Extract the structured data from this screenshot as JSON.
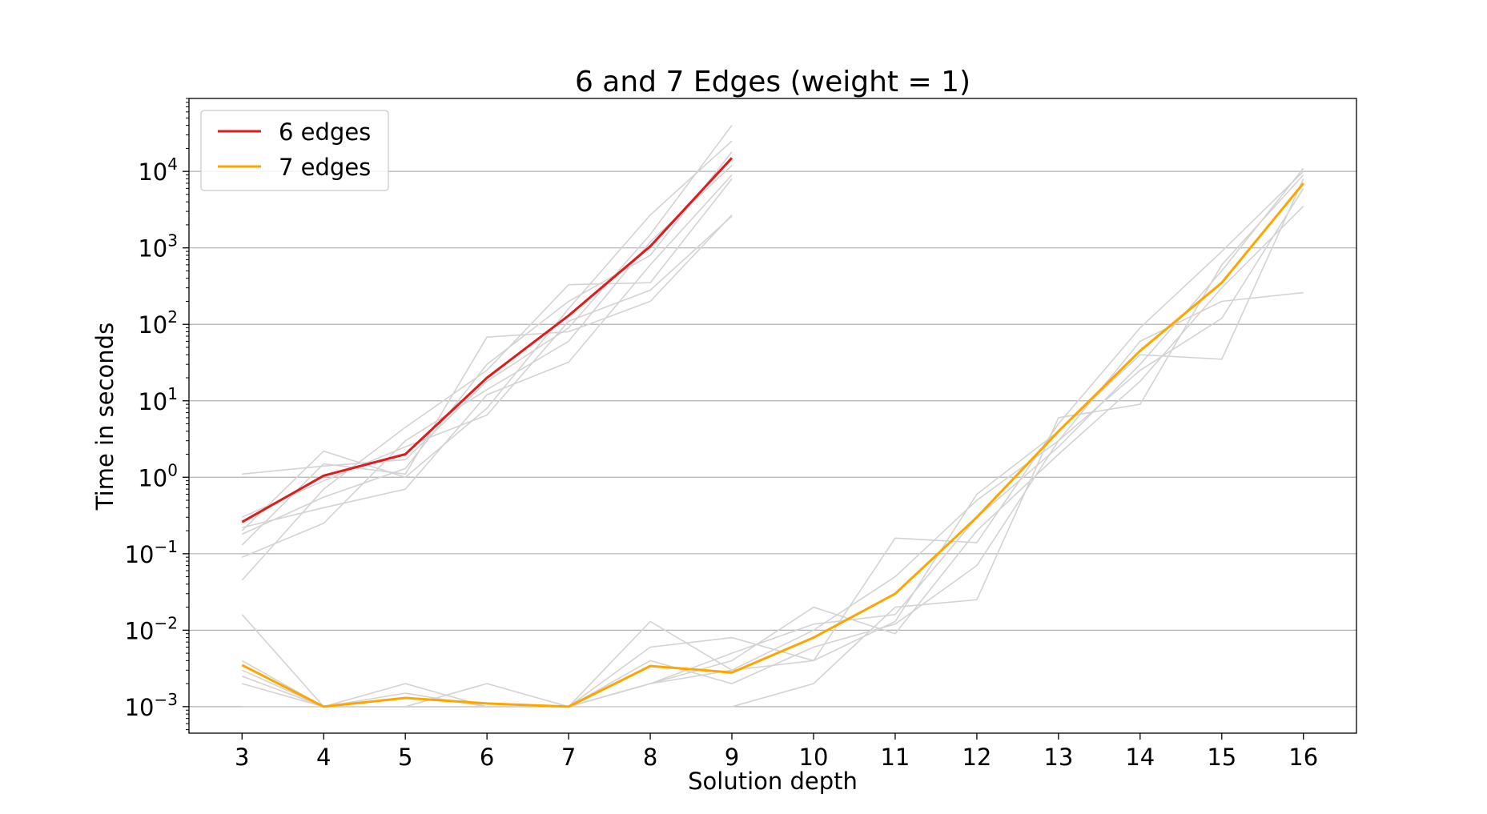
{
  "chart_data": {
    "type": "line",
    "title": "6 and 7 Edges (weight = 1)",
    "xlabel": "Solution depth",
    "ylabel": "Time in seconds",
    "x_ticks": [
      3,
      4,
      5,
      6,
      7,
      8,
      9,
      10,
      11,
      12,
      13,
      14,
      15,
      16
    ],
    "xlim": [
      2.35,
      16.65
    ],
    "yscale": "log",
    "ylim": [
      0.00045,
      90000
    ],
    "y_ticks": [
      {
        "value": 0.001,
        "base": "10",
        "exp": "−3"
      },
      {
        "value": 0.01,
        "base": "10",
        "exp": "−2"
      },
      {
        "value": 0.1,
        "base": "10",
        "exp": "−1"
      },
      {
        "value": 1,
        "base": "10",
        "exp": "0"
      },
      {
        "value": 10,
        "base": "10",
        "exp": "1"
      },
      {
        "value": 100,
        "base": "10",
        "exp": "2"
      },
      {
        "value": 1000,
        "base": "10",
        "exp": "3"
      },
      {
        "value": 10000,
        "base": "10",
        "exp": "4"
      }
    ],
    "grid": "y",
    "legend": "top-left",
    "series": [
      {
        "name": "6 edges",
        "color": "#e31a1c",
        "x": [
          3,
          4,
          5,
          6,
          7,
          8,
          9
        ],
        "values": [
          0.26,
          1.05,
          2.0,
          20,
          130,
          1050,
          15000
        ]
      },
      {
        "name": "7 edges",
        "color": "#ffa500",
        "x": [
          3,
          4,
          5,
          6,
          7,
          8,
          9,
          10,
          11,
          12,
          13,
          14,
          15,
          16
        ],
        "values": [
          0.0035,
          0.001,
          0.0013,
          0.0011,
          0.001,
          0.0034,
          0.0028,
          0.008,
          0.03,
          0.3,
          4.0,
          45,
          350,
          7000
        ]
      }
    ],
    "background_runs": {
      "color": "#d3d3d3",
      "six_edges": {
        "x": [
          3,
          4,
          5,
          6,
          7,
          8,
          9
        ],
        "runs": [
          [
            1.1,
            1.4,
            1.7,
            18,
            90,
            1500,
            40000
          ],
          [
            0.2,
            2.2,
            1.0,
            8,
            160,
            2700,
            25000
          ],
          [
            0.045,
            0.7,
            4.5,
            25,
            330,
            350,
            8000
          ],
          [
            0.09,
            0.25,
            3.0,
            14,
            60,
            1200,
            12000
          ],
          [
            0.13,
            1.5,
            1.1,
            68,
            80,
            200,
            2700
          ],
          [
            0.22,
            0.4,
            0.7,
            12,
            32,
            600,
            9000
          ],
          [
            0.3,
            0.9,
            2.5,
            6.5,
            110,
            280,
            2600
          ],
          [
            0.18,
            0.55,
            1.3,
            30,
            200,
            800,
            18000
          ]
        ]
      },
      "seven_edges": {
        "x": [
          3,
          4,
          5,
          6,
          7,
          8,
          9,
          10,
          11,
          12,
          13,
          14,
          15,
          16
        ],
        "runs": [
          [
            0.016,
            0.001,
            0.001,
            0.001,
            0.001,
            0.013,
            0.003,
            0.004,
            0.16,
            0.14,
            5,
            90,
            900,
            10000
          ],
          [
            0.004,
            0.001,
            0.002,
            0.001,
            0.001,
            0.006,
            0.008,
            0.004,
            0.013,
            0.6,
            4,
            40,
            35,
            8000
          ],
          [
            0.002,
            0.001,
            0.001,
            0.002,
            0.001,
            0.002,
            0.004,
            0.02,
            0.009,
            0.2,
            2,
            18,
            300,
            3500
          ],
          [
            0.003,
            0.001,
            0.001,
            0.001,
            0.001,
            0.001,
            0.001,
            0.002,
            0.02,
            0.025,
            6,
            9,
            600,
            9000
          ],
          [
            0.001,
            0.001,
            0.001,
            0.001,
            0.001,
            0.002,
            0.003,
            0.01,
            0.05,
            0.5,
            3,
            60,
            200,
            260
          ],
          [
            0.001,
            0.001,
            0.001,
            0.001,
            0.001,
            0.004,
            0.002,
            0.006,
            0.012,
            0.07,
            3,
            25,
            120,
            6000
          ],
          [
            0.0025,
            0.001,
            0.0015,
            0.001,
            0.001,
            0.002,
            0.005,
            0.012,
            0.016,
            0.3,
            2.5,
            30,
            500,
            11000
          ]
        ]
      }
    }
  }
}
